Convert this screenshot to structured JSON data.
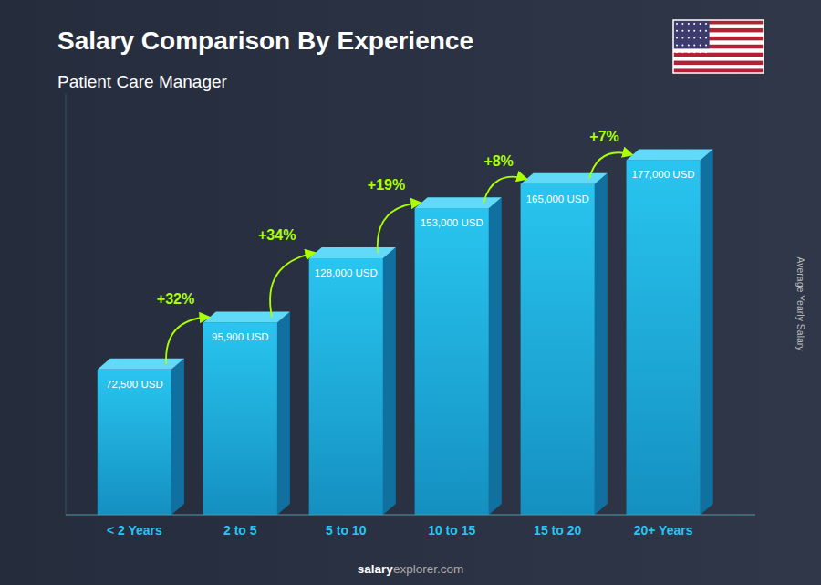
{
  "chart_data": {
    "type": "bar",
    "title": "Salary Comparison By Experience",
    "subtitle": "Patient Care Manager",
    "ylabel": "Average Yearly Salary",
    "categories": [
      "< 2 Years",
      "2 to 5",
      "5 to 10",
      "10 to 15",
      "15 to 20",
      "20+ Years"
    ],
    "values": [
      72500,
      95900,
      128000,
      153000,
      165000,
      177000
    ],
    "value_labels": [
      "72,500 USD",
      "95,900 USD",
      "128,000 USD",
      "153,000 USD",
      "165,000 USD",
      "177,000 USD"
    ],
    "data_labels": true,
    "color": "#29c5f0",
    "ylim": [
      0,
      210000
    ],
    "tick_labels": "x",
    "annotations": [
      "+32%",
      "+34%",
      "+19%",
      "+8%",
      "+7%"
    ],
    "footer": [
      "salary",
      "explorer.com"
    ]
  }
}
